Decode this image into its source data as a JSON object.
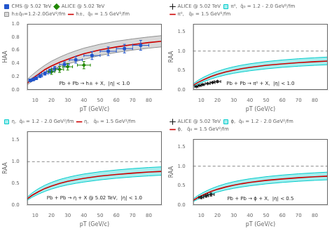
{
  "chart_data": [
    {
      "type": "line",
      "xlabel": "pT (GeV/c)",
      "ylabel": "HAA",
      "annotation": "Pb + Pb → h± + X,  |η| < 1.0",
      "xlim": [
        5,
        88
      ],
      "ylim": [
        0,
        1.0
      ],
      "xticks": [
        10,
        20,
        30,
        40,
        50,
        60,
        70,
        80
      ],
      "yticks": [
        {
          "value": 0,
          "label": "0.0"
        },
        0.2,
        0.4,
        0.6,
        0.8,
        {
          "value": 1.0,
          "label": "1.0"
        }
      ],
      "grid": false,
      "legend": "upper left",
      "series": [
        {
          "name": "CMS @ 5.02 TeV",
          "type": "scatter",
          "marker": "square",
          "color": "#2255cc",
          "x": [
            7.0,
            8.8,
            10.5,
            13.0,
            16.0,
            19.0,
            22.0,
            28.0,
            35.0,
            45.0,
            55.0,
            65.0,
            75.0
          ],
          "values": [
            0.145,
            0.158,
            0.175,
            0.21,
            0.248,
            0.283,
            0.32,
            0.385,
            0.455,
            0.52,
            0.585,
            0.625,
            0.675
          ],
          "yerr": [
            0.02,
            0.02,
            0.02,
            0.025,
            0.025,
            0.03,
            0.035,
            0.04,
            0.05,
            0.06,
            0.065,
            0.065,
            0.075
          ],
          "xerr": [
            1.0,
            1.0,
            1.0,
            1.5,
            2.0,
            2.0,
            2.0,
            3.0,
            4.0,
            5.0,
            5.0,
            5.0,
            5.0
          ]
        },
        {
          "name": "ALICE @ 5.02 TeV",
          "type": "scatter",
          "marker": "diamond",
          "color": "#228800",
          "x": [
            20.0,
            25.0,
            30.0,
            40.0
          ],
          "values": [
            0.275,
            0.31,
            0.35,
            0.375
          ],
          "yerr": [
            0.04,
            0.045,
            0.05,
            0.055
          ],
          "xerr": [
            2.0,
            2.5,
            3.0,
            4.0
          ]
        },
        {
          "name": "h±q̂₀=1.2-2.0GeV²/fm",
          "type": "band",
          "color": "#909090",
          "x": [
            5,
            8,
            12,
            16,
            20,
            25,
            30,
            35,
            40,
            50,
            60,
            70,
            80,
            88
          ],
          "upper": [
            0.155,
            0.225,
            0.305,
            0.375,
            0.435,
            0.495,
            0.548,
            0.592,
            0.632,
            0.692,
            0.737,
            0.772,
            0.802,
            0.822
          ],
          "lower": [
            0.075,
            0.128,
            0.192,
            0.252,
            0.3,
            0.35,
            0.393,
            0.428,
            0.462,
            0.522,
            0.567,
            0.603,
            0.632,
            0.652
          ]
        },
        {
          "name": "h±,  q̂₀ = 1.5 GeV²/fm",
          "type": "line",
          "line_style": "solid",
          "color": "#cc0000",
          "x": [
            5,
            8,
            12,
            16,
            20,
            25,
            30,
            35,
            40,
            50,
            60,
            70,
            80,
            88
          ],
          "values": [
            0.098,
            0.168,
            0.238,
            0.308,
            0.362,
            0.418,
            0.462,
            0.507,
            0.547,
            0.607,
            0.65,
            0.687,
            0.717,
            0.737
          ]
        }
      ]
    },
    {
      "type": "line",
      "xlabel": "pT (GeV/c)",
      "ylabel": "RAA",
      "annotation": "Pb + Pb → π⁰ + X,  |η| < 1.0",
      "xlim": [
        5,
        88
      ],
      "ylim": [
        0,
        1.7
      ],
      "xticks": [
        10,
        20,
        30,
        40,
        50,
        60,
        70,
        80
      ],
      "yticks": [
        {
          "value": 0,
          "label": "0.0"
        },
        0.5,
        {
          "value": 1.0,
          "label": "1.0"
        },
        1.5
      ],
      "reference_line": 1.0,
      "grid": false,
      "legend": "upper left",
      "series": [
        {
          "name": "ALICE @ 5.02 TeV",
          "type": "scatter",
          "marker": "plus",
          "color": "#111111",
          "x": [
            7.0,
            9.0,
            11.0,
            14.0,
            17.0,
            20.0
          ],
          "values": [
            0.085,
            0.112,
            0.135,
            0.163,
            0.188,
            0.215
          ],
          "yerr": [
            0.014,
            0.014,
            0.016,
            0.018,
            0.02,
            0.023
          ],
          "xerr": [
            1.0,
            1.0,
            1.0,
            1.5,
            1.5,
            2.0
          ]
        },
        {
          "name": "π⁰,  q̂₀ = 1.2 - 2.0 GeV²/fm",
          "type": "band",
          "color": "#00cccc",
          "x": [
            5,
            8,
            12,
            16,
            20,
            25,
            30,
            35,
            40,
            50,
            60,
            70,
            80,
            88
          ],
          "upper": [
            0.155,
            0.245,
            0.338,
            0.415,
            0.478,
            0.543,
            0.595,
            0.638,
            0.672,
            0.728,
            0.77,
            0.802,
            0.828,
            0.845
          ],
          "lower": [
            0.085,
            0.148,
            0.218,
            0.28,
            0.332,
            0.385,
            0.428,
            0.462,
            0.492,
            0.542,
            0.58,
            0.61,
            0.632,
            0.648
          ]
        },
        {
          "name": "π⁰,   q̂₀ = 1.5 GeV²/fm",
          "type": "line",
          "line_style": "solid",
          "color": "#cc0000",
          "x": [
            5,
            8,
            12,
            16,
            20,
            25,
            30,
            35,
            40,
            50,
            60,
            70,
            80,
            88
          ],
          "values": [
            0.115,
            0.192,
            0.272,
            0.345,
            0.402,
            0.46,
            0.508,
            0.548,
            0.58,
            0.632,
            0.67,
            0.7,
            0.725,
            0.742
          ]
        }
      ]
    },
    {
      "type": "line",
      "xlabel": "pT (GeV/c)",
      "ylabel": "RAA",
      "annotation": "Pb + Pb → η + X @ 5.02 TeV,  |η| < 1.0",
      "xlim": [
        5,
        88
      ],
      "ylim": [
        0,
        1.7
      ],
      "xticks": [
        10,
        20,
        30,
        40,
        50,
        60,
        70,
        80
      ],
      "yticks": [
        {
          "value": 0,
          "label": "0.0"
        },
        0.5,
        {
          "value": 1.0,
          "label": "1.0"
        },
        1.5
      ],
      "reference_line": 1.0,
      "grid": false,
      "legend": "upper left",
      "series": [
        {
          "name": "η,  q̂₀ = 1.2 - 2.0 GeV²/fm",
          "type": "band",
          "color": "#00cccc",
          "x": [
            5,
            8,
            12,
            16,
            20,
            25,
            30,
            35,
            40,
            50,
            60,
            70,
            80,
            88
          ],
          "upper": [
            0.178,
            0.278,
            0.378,
            0.458,
            0.522,
            0.588,
            0.638,
            0.68,
            0.715,
            0.768,
            0.808,
            0.84,
            0.865,
            0.88
          ],
          "lower": [
            0.108,
            0.178,
            0.252,
            0.315,
            0.368,
            0.422,
            0.465,
            0.5,
            0.53,
            0.58,
            0.618,
            0.648,
            0.672,
            0.688
          ]
        },
        {
          "name": "η,   q̂₀ = 1.5 GeV²/fm",
          "type": "line",
          "line_style": "solid",
          "color": "#cc0000",
          "x": [
            5,
            8,
            12,
            16,
            20,
            25,
            30,
            35,
            40,
            50,
            60,
            70,
            80,
            88
          ],
          "values": [
            0.138,
            0.222,
            0.308,
            0.382,
            0.438,
            0.498,
            0.545,
            0.582,
            0.615,
            0.668,
            0.705,
            0.735,
            0.76,
            0.775
          ]
        }
      ]
    },
    {
      "type": "line",
      "xlabel": "pT (GeV/c)",
      "ylabel": "RAA",
      "annotation": "Pb + Pb → ϕ + X,  |η| < 0.5",
      "xlim": [
        5,
        88
      ],
      "ylim": [
        0,
        1.7
      ],
      "xticks": [
        10,
        20,
        30,
        40,
        50,
        60,
        70,
        80
      ],
      "yticks": [
        {
          "value": 0,
          "label": "0.0"
        },
        0.5,
        {
          "value": 1.0,
          "label": "1.0"
        },
        1.5
      ],
      "reference_line": 1.0,
      "grid": false,
      "legend": "upper left",
      "series": [
        {
          "name": "ALICE @ 5.02 TeV",
          "type": "scatter",
          "marker": "plus",
          "color": "#111111",
          "x": [
            10.0,
            13.0,
            16.0
          ],
          "values": [
            0.195,
            0.235,
            0.27
          ],
          "yerr": [
            0.03,
            0.033,
            0.038
          ],
          "xerr": [
            1.5,
            1.5,
            2.0
          ]
        },
        {
          "name": "ϕ,  q̂₀ = 1.2 - 2.0 GeV²/fm",
          "type": "band",
          "color": "#00cccc",
          "x": [
            5,
            8,
            12,
            16,
            20,
            25,
            30,
            35,
            40,
            50,
            60,
            70,
            80,
            88
          ],
          "upper": [
            0.155,
            0.248,
            0.34,
            0.418,
            0.482,
            0.548,
            0.6,
            0.642,
            0.676,
            0.73,
            0.772,
            0.804,
            0.83,
            0.847
          ],
          "lower": [
            0.088,
            0.15,
            0.22,
            0.282,
            0.335,
            0.388,
            0.43,
            0.465,
            0.495,
            0.545,
            0.582,
            0.612,
            0.635,
            0.65
          ]
        },
        {
          "name": "ϕ,   q̂₀ = 1.5 GeV²/fm",
          "type": "line",
          "line_style": "solid",
          "color": "#cc0000",
          "x": [
            5,
            8,
            12,
            16,
            20,
            25,
            30,
            35,
            40,
            50,
            60,
            70,
            80,
            88
          ],
          "values": [
            0.118,
            0.195,
            0.275,
            0.348,
            0.405,
            0.463,
            0.51,
            0.55,
            0.582,
            0.635,
            0.672,
            0.703,
            0.727,
            0.743
          ]
        }
      ]
    }
  ]
}
